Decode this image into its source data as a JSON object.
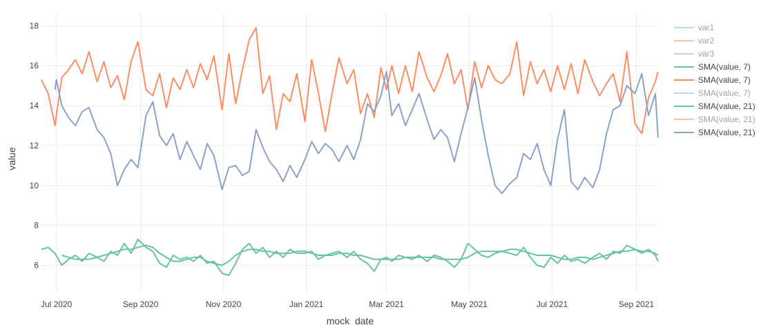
{
  "chart_data": {
    "type": "line",
    "xlabel": "mock_date",
    "ylabel": "value",
    "x_range": [
      "2020-06-20",
      "2021-09-17"
    ],
    "ylim": [
      4.6,
      18.6
    ],
    "grid": true,
    "legend_placement": "right",
    "x_ticks": [
      {
        "date": "2020-07-01",
        "label": "Jul 2020"
      },
      {
        "date": "2020-09-01",
        "label": "Sep 2020"
      },
      {
        "date": "2020-11-01",
        "label": "Nov 2020"
      },
      {
        "date": "2021-01-01",
        "label": "Jan 2021"
      },
      {
        "date": "2021-03-01",
        "label": "Mar 2021"
      },
      {
        "date": "2021-05-01",
        "label": "May 2021"
      },
      {
        "date": "2021-07-01",
        "label": "Jul 2021"
      },
      {
        "date": "2021-09-01",
        "label": "Sep 2021"
      }
    ],
    "y_ticks": [
      6,
      8,
      10,
      12,
      14,
      16,
      18
    ],
    "legend": [
      {
        "name": "var1",
        "color": "#66c2a5",
        "faded": true
      },
      {
        "name": "var2",
        "color": "#fc8d62",
        "faded": true
      },
      {
        "name": "var3",
        "color": "#8da0cb",
        "faded": true
      },
      {
        "name": "SMA(value, 7)",
        "color": "#66c2a5",
        "faded": false
      },
      {
        "name": "SMA(value, 7)",
        "color": "#fc8d62",
        "faded": false
      },
      {
        "name": "SMA(value, 7)",
        "color": "#8da0cb",
        "faded": true
      },
      {
        "name": "SMA(value, 21)",
        "color": "#66c2a5",
        "faded": false
      },
      {
        "name": "SMA(value, 21)",
        "color": "#fc8d62",
        "faded": true
      },
      {
        "name": "SMA(value, 21)",
        "color": "#8da0cb",
        "faded": false
      }
    ],
    "series": [
      {
        "name": "SMA(value, 7)",
        "color": "#fc8d62",
        "x": [
          "2020-06-20",
          "2020-06-25",
          "2020-06-30",
          "2020-07-01",
          "2020-07-05",
          "2020-07-10",
          "2020-07-15",
          "2020-07-20",
          "2020-07-25",
          "2020-07-31",
          "2020-08-05",
          "2020-08-10",
          "2020-08-15",
          "2020-08-20",
          "2020-08-25",
          "2020-08-30",
          "2020-09-05",
          "2020-09-10",
          "2020-09-15",
          "2020-09-20",
          "2020-09-25",
          "2020-09-30",
          "2020-10-05",
          "2020-10-10",
          "2020-10-15",
          "2020-10-20",
          "2020-10-25",
          "2020-10-31",
          "2020-11-05",
          "2020-11-10",
          "2020-11-15",
          "2020-11-20",
          "2020-11-25",
          "2020-11-30",
          "2020-12-05",
          "2020-12-10",
          "2020-12-15",
          "2020-12-20",
          "2020-12-25",
          "2020-12-31",
          "2021-01-05",
          "2021-01-10",
          "2021-01-15",
          "2021-01-20",
          "2021-01-25",
          "2021-01-31",
          "2021-02-05",
          "2021-02-10",
          "2021-02-15",
          "2021-02-20",
          "2021-02-25",
          "2021-03-01",
          "2021-03-05",
          "2021-03-10",
          "2021-03-15",
          "2021-03-20",
          "2021-03-25",
          "2021-03-31",
          "2021-04-05",
          "2021-04-10",
          "2021-04-15",
          "2021-04-20",
          "2021-04-25",
          "2021-04-30",
          "2021-05-05",
          "2021-05-10",
          "2021-05-15",
          "2021-05-20",
          "2021-05-25",
          "2021-05-31",
          "2021-06-05",
          "2021-06-10",
          "2021-06-15",
          "2021-06-20",
          "2021-06-25",
          "2021-06-30",
          "2021-07-05",
          "2021-07-10",
          "2021-07-15",
          "2021-07-20",
          "2021-07-25",
          "2021-07-31",
          "2021-08-05",
          "2021-08-10",
          "2021-08-15",
          "2021-08-20",
          "2021-08-25",
          "2021-08-31",
          "2021-09-05",
          "2021-09-10",
          "2021-09-15",
          "2021-09-17"
        ],
        "values": [
          15.3,
          14.6,
          13.0,
          13.5,
          15.4,
          15.8,
          16.3,
          15.6,
          16.7,
          15.2,
          16.2,
          14.9,
          15.5,
          14.3,
          16.2,
          17.2,
          14.8,
          14.5,
          15.6,
          13.9,
          15.4,
          14.8,
          15.8,
          14.9,
          16.1,
          15.3,
          16.5,
          13.8,
          16.6,
          14.1,
          15.8,
          17.3,
          17.9,
          14.6,
          15.5,
          12.8,
          14.6,
          14.2,
          15.6,
          13.2,
          16.3,
          14.6,
          12.7,
          14.6,
          16.4,
          15.1,
          15.8,
          13.6,
          14.6,
          13.4,
          15.9,
          14.8,
          16.0,
          14.6,
          16.0,
          14.7,
          16.7,
          15.4,
          14.7,
          15.5,
          16.6,
          15.1,
          15.8,
          13.8,
          16.2,
          14.9,
          16.0,
          15.3,
          15.1,
          15.6,
          17.2,
          14.5,
          16.2,
          15.1,
          15.8,
          14.7,
          16.0,
          14.8,
          16.1,
          14.6,
          16.3,
          15.2,
          14.5,
          15.1,
          15.6,
          14.2,
          16.7,
          13.1,
          12.6,
          14.4,
          15.2,
          15.7
        ]
      },
      {
        "name": "SMA(value, 21)",
        "color": "#8da0cb",
        "x": [
          "2020-06-30",
          "2020-07-01",
          "2020-07-05",
          "2020-07-10",
          "2020-07-15",
          "2020-07-20",
          "2020-07-25",
          "2020-07-31",
          "2020-08-05",
          "2020-08-10",
          "2020-08-15",
          "2020-08-20",
          "2020-08-25",
          "2020-08-30",
          "2020-09-05",
          "2020-09-10",
          "2020-09-15",
          "2020-09-20",
          "2020-09-25",
          "2020-09-30",
          "2020-10-05",
          "2020-10-10",
          "2020-10-15",
          "2020-10-20",
          "2020-10-25",
          "2020-10-31",
          "2020-11-05",
          "2020-11-10",
          "2020-11-15",
          "2020-11-20",
          "2020-11-25",
          "2020-11-30",
          "2020-12-05",
          "2020-12-10",
          "2020-12-15",
          "2020-12-20",
          "2020-12-25",
          "2020-12-31",
          "2021-01-05",
          "2021-01-10",
          "2021-01-15",
          "2021-01-20",
          "2021-01-25",
          "2021-01-31",
          "2021-02-05",
          "2021-02-10",
          "2021-02-15",
          "2021-02-20",
          "2021-02-25",
          "2021-03-01",
          "2021-03-05",
          "2021-03-10",
          "2021-03-15",
          "2021-03-20",
          "2021-03-25",
          "2021-03-31",
          "2021-04-05",
          "2021-04-10",
          "2021-04-15",
          "2021-04-20",
          "2021-04-25",
          "2021-04-30",
          "2021-05-05",
          "2021-05-10",
          "2021-05-15",
          "2021-05-20",
          "2021-05-25",
          "2021-05-31",
          "2021-06-05",
          "2021-06-10",
          "2021-06-15",
          "2021-06-20",
          "2021-06-25",
          "2021-06-30",
          "2021-07-05",
          "2021-07-10",
          "2021-07-15",
          "2021-07-20",
          "2021-07-25",
          "2021-07-31",
          "2021-08-05",
          "2021-08-10",
          "2021-08-15",
          "2021-08-20",
          "2021-08-25",
          "2021-08-31",
          "2021-09-05",
          "2021-09-10",
          "2021-09-15",
          "2021-09-17"
        ],
        "values": [
          14.8,
          15.3,
          14.0,
          13.4,
          13.0,
          13.7,
          13.9,
          12.8,
          12.4,
          11.6,
          10.0,
          10.8,
          11.3,
          10.9,
          13.5,
          14.2,
          12.5,
          12.0,
          12.6,
          11.3,
          12.2,
          11.5,
          10.8,
          12.1,
          11.5,
          9.8,
          10.9,
          11.0,
          10.5,
          10.7,
          12.8,
          11.9,
          11.2,
          10.8,
          10.2,
          11.0,
          10.4,
          11.3,
          12.2,
          11.6,
          12.1,
          11.8,
          11.2,
          12.0,
          11.3,
          12.3,
          14.1,
          13.7,
          14.5,
          15.7,
          13.5,
          14.1,
          13.0,
          13.8,
          14.6,
          13.3,
          12.3,
          12.8,
          12.4,
          11.2,
          12.6,
          13.9,
          15.4,
          13.3,
          11.5,
          10.0,
          9.6,
          10.1,
          10.4,
          11.6,
          11.3,
          12.1,
          10.8,
          10.0,
          12.3,
          13.8,
          10.2,
          9.8,
          10.4,
          9.9,
          10.8,
          12.6,
          13.8,
          14.0,
          15.0,
          14.6,
          15.6,
          13.5,
          14.6,
          12.4
        ]
      },
      {
        "name": "SMA(value, 7)",
        "color": "#66c2a5",
        "x": [
          "2020-06-20",
          "2020-06-25",
          "2020-06-30",
          "2020-07-05",
          "2020-07-10",
          "2020-07-15",
          "2020-07-20",
          "2020-07-25",
          "2020-07-31",
          "2020-08-05",
          "2020-08-10",
          "2020-08-15",
          "2020-08-20",
          "2020-08-25",
          "2020-08-30",
          "2020-09-05",
          "2020-09-10",
          "2020-09-15",
          "2020-09-20",
          "2020-09-25",
          "2020-09-30",
          "2020-10-05",
          "2020-10-10",
          "2020-10-15",
          "2020-10-20",
          "2020-10-25",
          "2020-10-31",
          "2020-11-05",
          "2020-11-10",
          "2020-11-15",
          "2020-11-20",
          "2020-11-25",
          "2020-11-30",
          "2020-12-05",
          "2020-12-10",
          "2020-12-15",
          "2020-12-20",
          "2020-12-25",
          "2020-12-31",
          "2021-01-05",
          "2021-01-10",
          "2021-01-15",
          "2021-01-20",
          "2021-01-25",
          "2021-01-31",
          "2021-02-05",
          "2021-02-10",
          "2021-02-15",
          "2021-02-20",
          "2021-02-25",
          "2021-03-01",
          "2021-03-05",
          "2021-03-10",
          "2021-03-15",
          "2021-03-20",
          "2021-03-25",
          "2021-03-31",
          "2021-04-05",
          "2021-04-10",
          "2021-04-15",
          "2021-04-20",
          "2021-04-25",
          "2021-04-30",
          "2021-05-05",
          "2021-05-10",
          "2021-05-15",
          "2021-05-20",
          "2021-05-25",
          "2021-05-31",
          "2021-06-05",
          "2021-06-10",
          "2021-06-15",
          "2021-06-20",
          "2021-06-25",
          "2021-06-30",
          "2021-07-05",
          "2021-07-10",
          "2021-07-15",
          "2021-07-20",
          "2021-07-25",
          "2021-07-31",
          "2021-08-05",
          "2021-08-10",
          "2021-08-15",
          "2021-08-20",
          "2021-08-25",
          "2021-08-31",
          "2021-09-05",
          "2021-09-10",
          "2021-09-15",
          "2021-09-17"
        ],
        "values": [
          6.8,
          6.9,
          6.6,
          6.0,
          6.3,
          6.5,
          6.2,
          6.6,
          6.4,
          6.2,
          6.7,
          6.5,
          7.1,
          6.6,
          7.3,
          6.9,
          6.7,
          6.1,
          5.9,
          6.5,
          6.3,
          6.4,
          6.2,
          6.5,
          6.1,
          6.2,
          5.6,
          5.5,
          6.1,
          6.8,
          7.1,
          6.6,
          6.9,
          6.4,
          6.7,
          6.4,
          6.8,
          6.6,
          6.6,
          6.7,
          6.3,
          6.5,
          6.6,
          6.7,
          6.4,
          6.7,
          6.3,
          6.1,
          5.7,
          6.3,
          6.4,
          6.2,
          6.5,
          6.4,
          6.3,
          6.5,
          6.2,
          6.5,
          6.4,
          6.2,
          5.9,
          6.3,
          7.1,
          6.8,
          6.5,
          6.4,
          6.6,
          6.7,
          6.6,
          6.5,
          6.9,
          6.4,
          6.0,
          5.9,
          6.4,
          6.1,
          6.5,
          6.2,
          6.3,
          6.1,
          6.4,
          6.6,
          6.3,
          6.7,
          6.6,
          7.0,
          6.8,
          6.6,
          6.8,
          6.5,
          6.2
        ]
      },
      {
        "name": "SMA(value, 21)",
        "color": "#66c2a5",
        "x": [
          "2020-07-05",
          "2020-07-10",
          "2020-07-15",
          "2020-07-20",
          "2020-07-25",
          "2020-07-31",
          "2020-08-05",
          "2020-08-10",
          "2020-08-15",
          "2020-08-20",
          "2020-08-25",
          "2020-08-30",
          "2020-09-05",
          "2020-09-10",
          "2020-09-15",
          "2020-09-20",
          "2020-09-25",
          "2020-09-30",
          "2020-10-05",
          "2020-10-10",
          "2020-10-15",
          "2020-10-20",
          "2020-10-25",
          "2020-10-31",
          "2020-11-05",
          "2020-11-10",
          "2020-11-15",
          "2020-11-20",
          "2020-11-25",
          "2020-11-30",
          "2020-12-05",
          "2020-12-10",
          "2020-12-15",
          "2020-12-20",
          "2020-12-25",
          "2020-12-31",
          "2021-01-05",
          "2021-01-10",
          "2021-01-15",
          "2021-01-20",
          "2021-01-25",
          "2021-01-31",
          "2021-02-05",
          "2021-02-10",
          "2021-02-15",
          "2021-02-20",
          "2021-02-25",
          "2021-03-01",
          "2021-03-05",
          "2021-03-10",
          "2021-03-15",
          "2021-03-20",
          "2021-03-25",
          "2021-03-31",
          "2021-04-05",
          "2021-04-10",
          "2021-04-15",
          "2021-04-20",
          "2021-04-25",
          "2021-04-30",
          "2021-05-05",
          "2021-05-10",
          "2021-05-15",
          "2021-05-20",
          "2021-05-25",
          "2021-05-31",
          "2021-06-05",
          "2021-06-10",
          "2021-06-15",
          "2021-06-20",
          "2021-06-25",
          "2021-06-30",
          "2021-07-05",
          "2021-07-10",
          "2021-07-15",
          "2021-07-20",
          "2021-07-25",
          "2021-07-31",
          "2021-08-05",
          "2021-08-10",
          "2021-08-15",
          "2021-08-20",
          "2021-08-25",
          "2021-08-31",
          "2021-09-05",
          "2021-09-10",
          "2021-09-15",
          "2021-09-17"
        ],
        "values": [
          6.5,
          6.4,
          6.3,
          6.3,
          6.3,
          6.4,
          6.5,
          6.6,
          6.7,
          6.8,
          6.8,
          6.9,
          7.0,
          6.9,
          6.6,
          6.4,
          6.2,
          6.2,
          6.3,
          6.4,
          6.4,
          6.2,
          6.1,
          6.0,
          6.2,
          6.5,
          6.7,
          6.8,
          6.8,
          6.7,
          6.7,
          6.6,
          6.6,
          6.6,
          6.7,
          6.7,
          6.6,
          6.5,
          6.5,
          6.5,
          6.6,
          6.6,
          6.5,
          6.5,
          6.4,
          6.3,
          6.3,
          6.3,
          6.3,
          6.3,
          6.4,
          6.4,
          6.4,
          6.4,
          6.4,
          6.3,
          6.3,
          6.3,
          6.3,
          6.4,
          6.6,
          6.7,
          6.7,
          6.7,
          6.7,
          6.8,
          6.8,
          6.7,
          6.6,
          6.5,
          6.5,
          6.5,
          6.4,
          6.3,
          6.3,
          6.4,
          6.4,
          6.3,
          6.4,
          6.5,
          6.6,
          6.7,
          6.7,
          6.8,
          6.7,
          6.7,
          6.6,
          6.5
        ]
      }
    ]
  }
}
